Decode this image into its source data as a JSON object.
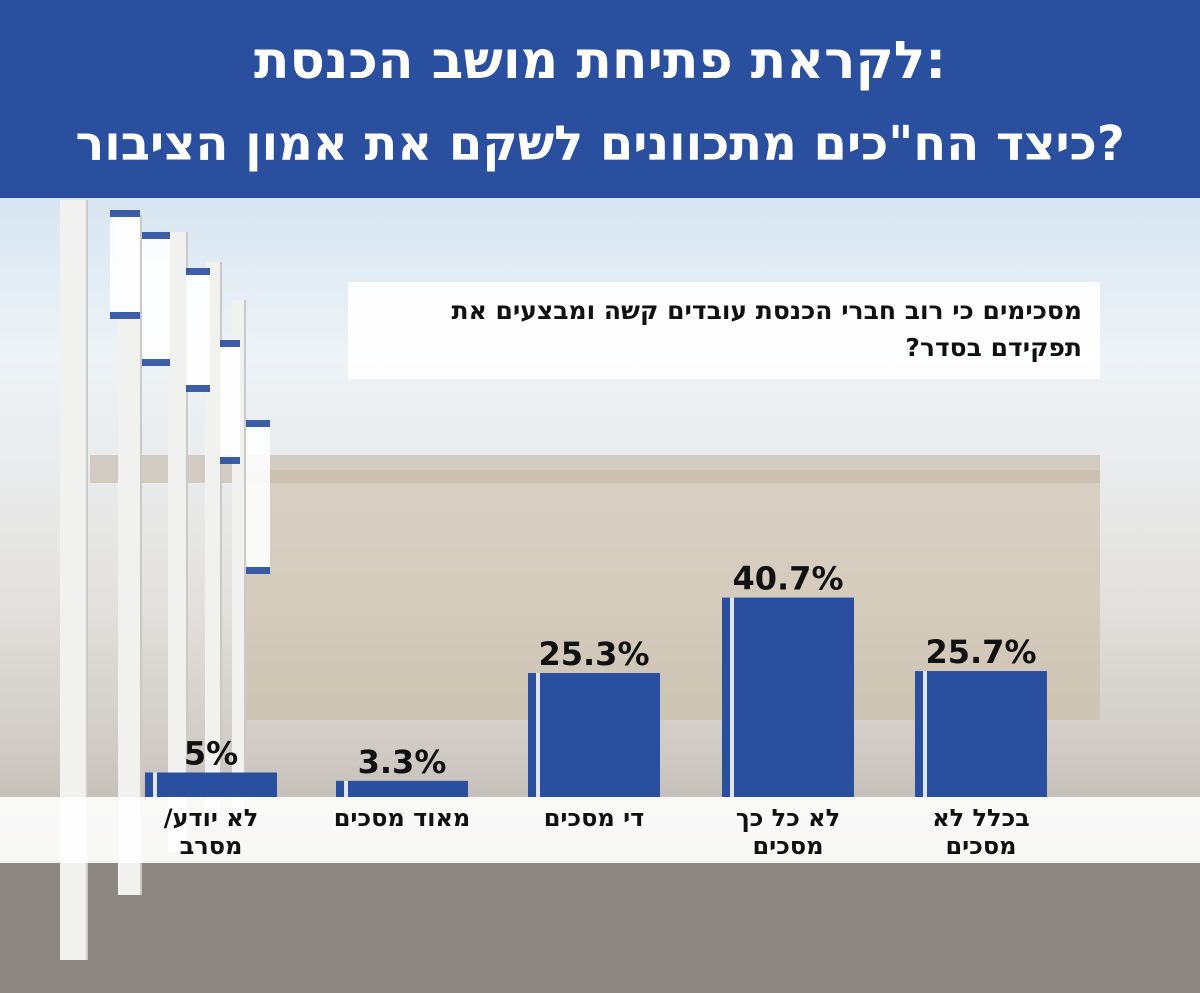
{
  "header": {
    "title": "לקראת פתיחת מושב הכנסת:",
    "subtitle": "כיצד הח\"כים מתכוונים לשקם את אמון הציבור?"
  },
  "question": "מסכימים כי רוב חברי הכנסת עובדים קשה ומבצעים את תפקידם בסדר?",
  "colors": {
    "header": "#2a4f9e",
    "bar": "#2a4f9e",
    "bar_accent": "#4b73c4"
  },
  "chart_data": {
    "type": "bar",
    "title": "",
    "xlabel": "",
    "ylabel": "",
    "ylim": [
      0,
      45
    ],
    "grid": false,
    "legend": "none",
    "categories": [
      [
        "לא יודע/",
        "מסרב"
      ],
      [
        "מאוד מסכים"
      ],
      [
        "די מסכים"
      ],
      [
        "לא כל כך",
        "מסכים"
      ],
      [
        "בכלל לא",
        "מסכים"
      ]
    ],
    "values": [
      5,
      3.3,
      25.3,
      40.7,
      25.7
    ],
    "value_labels": [
      "5%",
      "3.3%",
      "25.3%",
      "40.7%",
      "25.7%"
    ]
  }
}
